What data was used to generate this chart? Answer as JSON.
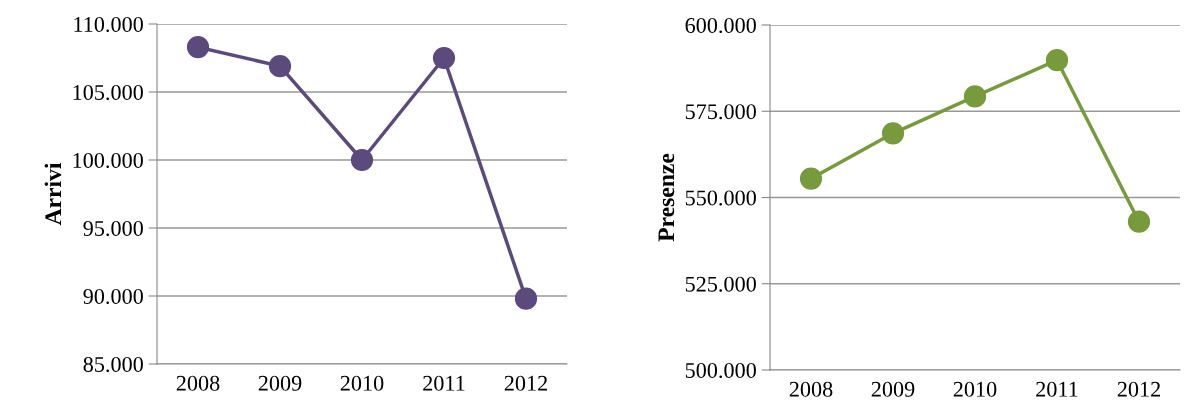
{
  "chart_data": [
    {
      "type": "line",
      "ylabel": "Arrivi",
      "categories": [
        "2008",
        "2009",
        "2010",
        "2011",
        "2012"
      ],
      "series": [
        {
          "color": "#5c4a7d",
          "values": [
            108300,
            106900,
            100000,
            107500,
            89800
          ]
        }
      ],
      "ylim": [
        85000,
        110000
      ],
      "yticks": [
        {
          "value": 85000,
          "label": "85.000"
        },
        {
          "value": 90000,
          "label": "90.000"
        },
        {
          "value": 95000,
          "label": "95.000"
        },
        {
          "value": 100000,
          "label": "100.000"
        },
        {
          "value": 105000,
          "label": "105.000"
        },
        {
          "value": 110000,
          "label": "110.000"
        }
      ],
      "grid": "y",
      "marker": "circle",
      "line_style": "solid"
    },
    {
      "type": "line",
      "ylabel": "Presenze",
      "categories": [
        "2008",
        "2009",
        "2010",
        "2011",
        "2012"
      ],
      "series": [
        {
          "color": "#779a3c",
          "values": [
            555500,
            568600,
            579300,
            589800,
            543000
          ]
        }
      ],
      "ylim": [
        500000,
        600000
      ],
      "yticks": [
        {
          "value": 500000,
          "label": "500.000"
        },
        {
          "value": 525000,
          "label": "525.000"
        },
        {
          "value": 550000,
          "label": "550.000"
        },
        {
          "value": 575000,
          "label": "575.000"
        },
        {
          "value": 600000,
          "label": "600.000"
        }
      ],
      "grid": "y",
      "marker": "circle",
      "line_style": "solid"
    }
  ]
}
